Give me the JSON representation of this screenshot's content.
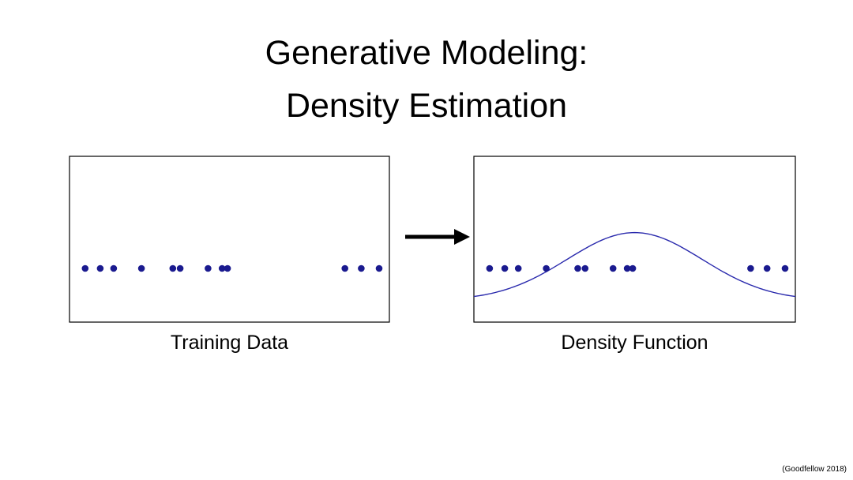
{
  "title": {
    "line1": "Generative Modeling:",
    "line2": "Density Estimation"
  },
  "panels": {
    "left": {
      "label": "Training Data"
    },
    "right": {
      "label": "Density Function"
    }
  },
  "attribution": "(Goodfellow 2018)",
  "colors": {
    "dot": "#1a1a8f",
    "curve": "#2a2aad",
    "box_border": "#000000",
    "arrow": "#000000"
  },
  "chart_data": {
    "type": "scatter",
    "title": "Generative Modeling: Density Estimation",
    "description": "One-dimensional training samples (dots) shown alone on the left, and with an estimated Gaussian density function overlaid on the right.",
    "dots_rel_x": [
      0.049,
      0.096,
      0.138,
      0.225,
      0.323,
      0.346,
      0.433,
      0.477,
      0.494,
      0.861,
      0.912,
      0.968
    ],
    "dot_rel_y": 0.676,
    "dot_radius": 4.3,
    "curve": {
      "shape": "gaussian",
      "mean_rel": 0.5,
      "sigma_rel": 0.21,
      "peak_rel_y": 0.46,
      "baseline_rel_y": 0.87
    },
    "legend": null,
    "grid": false
  }
}
